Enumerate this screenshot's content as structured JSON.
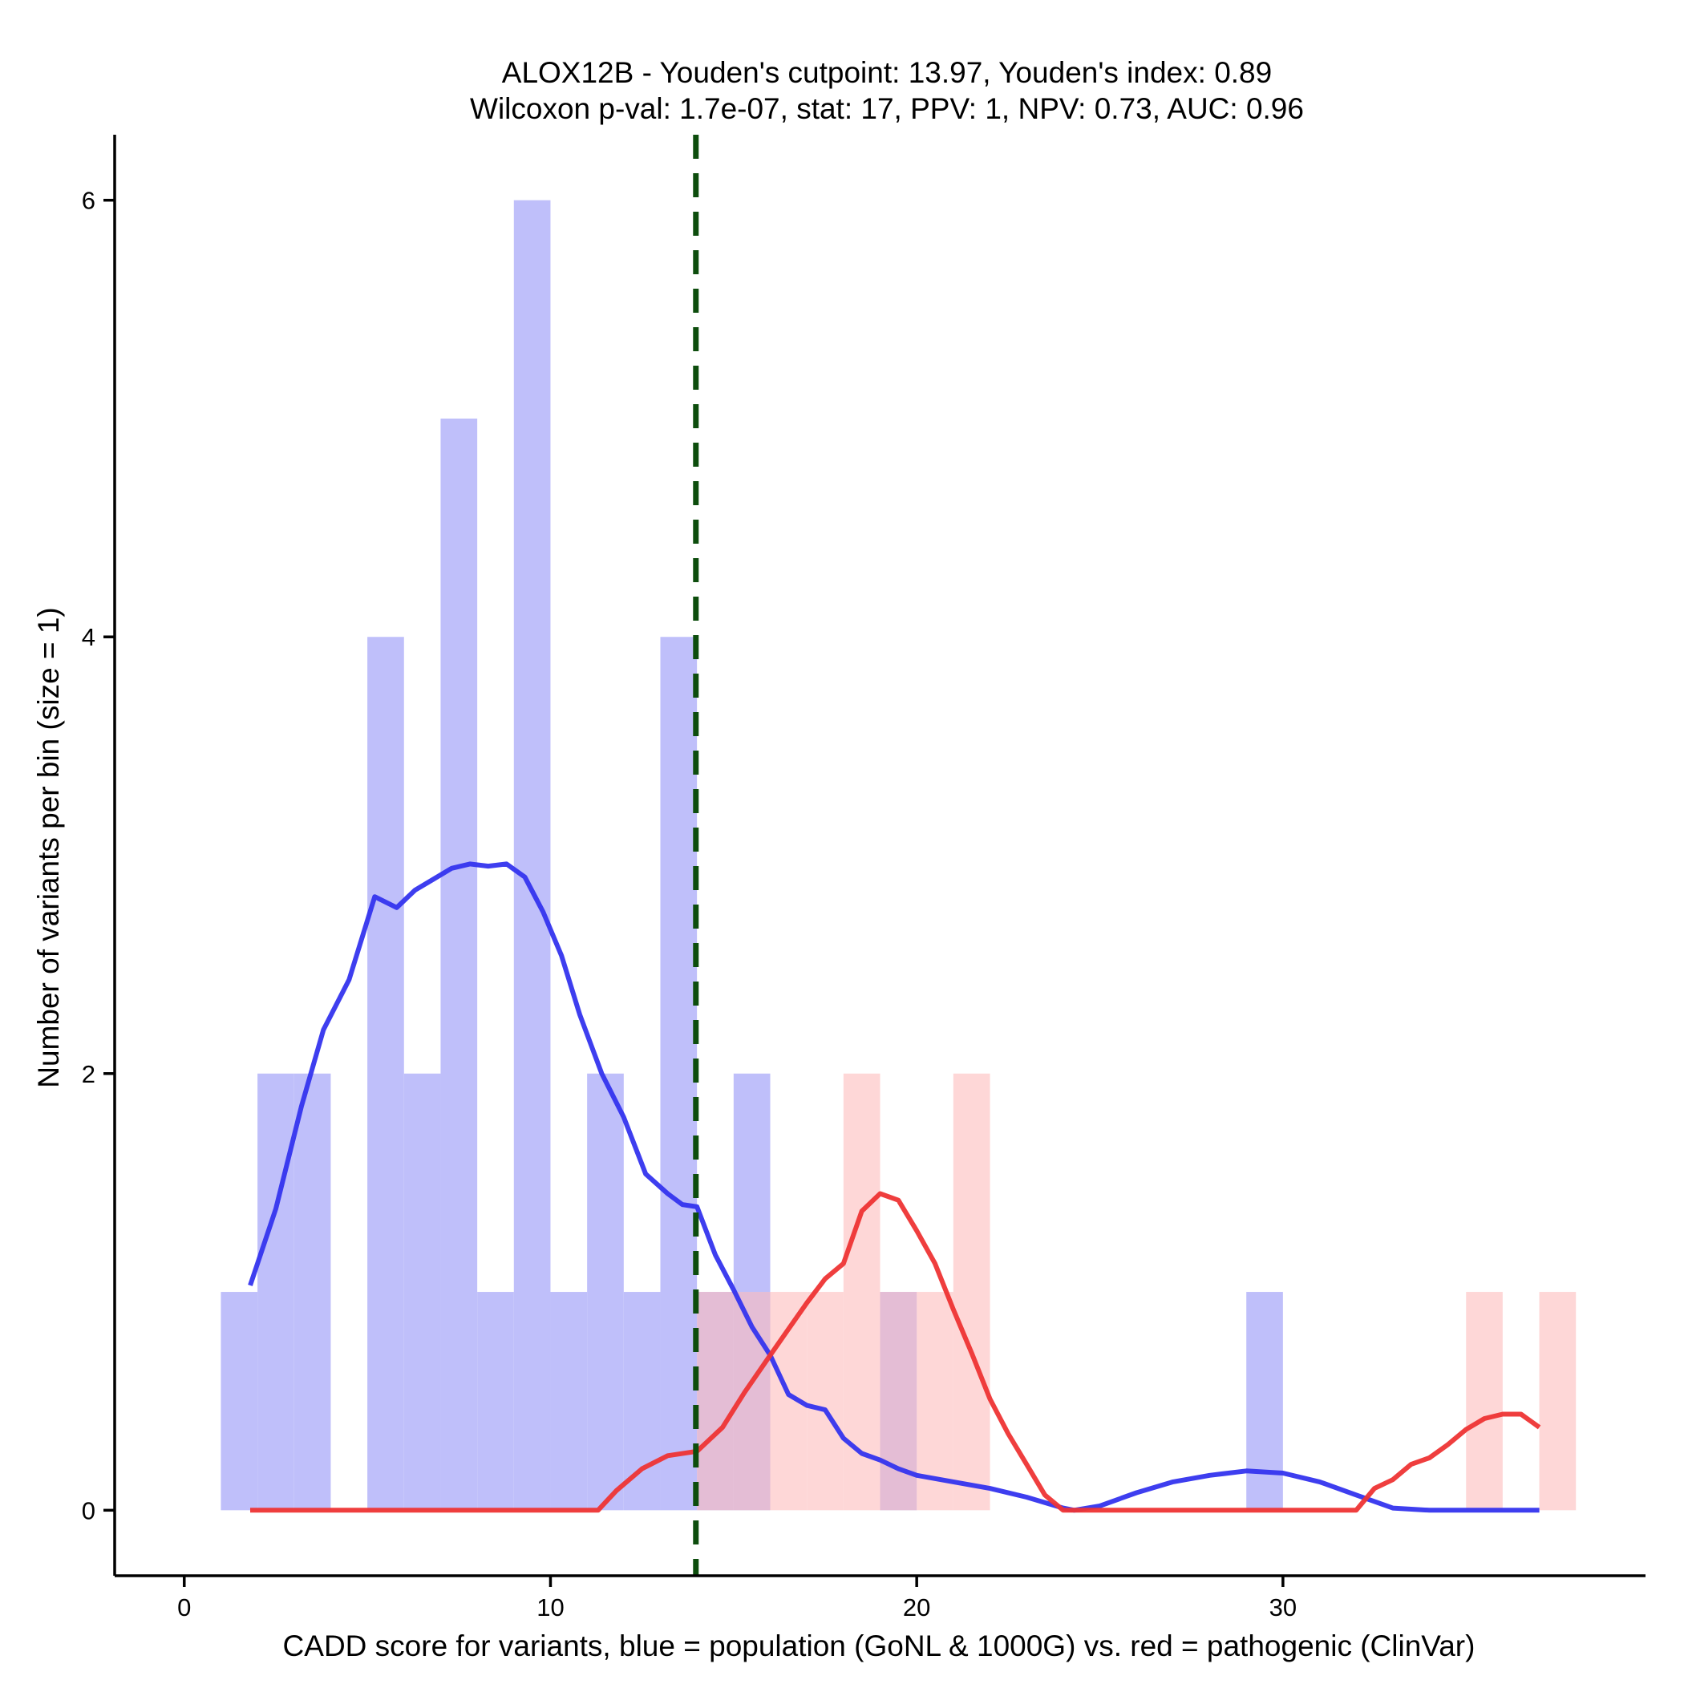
{
  "chart_data": {
    "type": "histogram",
    "title": "ALOX12B - Youden's cutpoint: 13.97, Youden's index: 0.89",
    "subtitle": "Wilcoxon p-val: 1.7e-07, stat: 17, PPV: 1, NPV: 0.73, AUC: 0.96",
    "xlabel": "CADD score for variants, blue = population (GoNL & 1000G) vs. red = pathogenic (ClinVar)",
    "ylabel": "Number of variants per bin (size = 1)",
    "xlim": [
      -1.9,
      39.9
    ],
    "ylim": [
      -0.3,
      6.3
    ],
    "x_ticks": [
      0,
      10,
      20,
      30
    ],
    "y_ticks": [
      0,
      2,
      4,
      6
    ],
    "bin_size": 1,
    "cutpoint": 13.97,
    "series": [
      {
        "name": "population (GoNL & 1000G)",
        "color": "#bcbcfa",
        "line_color": "#3434ee",
        "bins": [
          {
            "start": 1,
            "end": 2,
            "count": 1
          },
          {
            "start": 2,
            "end": 3,
            "count": 2
          },
          {
            "start": 3,
            "end": 4,
            "count": 2
          },
          {
            "start": 5,
            "end": 6,
            "count": 4
          },
          {
            "start": 6,
            "end": 7,
            "count": 2
          },
          {
            "start": 7,
            "end": 8,
            "count": 5
          },
          {
            "start": 8,
            "end": 9,
            "count": 1
          },
          {
            "start": 9,
            "end": 10,
            "count": 6
          },
          {
            "start": 10,
            "end": 11,
            "count": 1
          },
          {
            "start": 11,
            "end": 12,
            "count": 2
          },
          {
            "start": 12,
            "end": 13,
            "count": 1
          },
          {
            "start": 13,
            "end": 14,
            "count": 4
          },
          {
            "start": 14,
            "end": 15,
            "count": 1
          },
          {
            "start": 15,
            "end": 16,
            "count": 2
          },
          {
            "start": 19,
            "end": 20,
            "count": 1
          },
          {
            "start": 29,
            "end": 30,
            "count": 1
          }
        ],
        "density": {
          "x": [
            1.8,
            2.5,
            3.2,
            3.8,
            4.5,
            5.2,
            5.8,
            6.3,
            6.8,
            7.3,
            7.8,
            8.3,
            8.8,
            9.3,
            9.8,
            10.3,
            10.8,
            11.4,
            12.0,
            12.6,
            13.2,
            13.6,
            14.0,
            14.5,
            15.0,
            15.5,
            16.0,
            16.5,
            17.0,
            17.5,
            18.0,
            18.5,
            19.0,
            19.5,
            20.0,
            21.0,
            22.0,
            23.0,
            24.0,
            24.3,
            25.0,
            26.0,
            27.0,
            28.0,
            29.0,
            30.0,
            31.0,
            32.0,
            33.0,
            34.0,
            35.0,
            36.0,
            37.0
          ],
          "y": [
            1.03,
            1.38,
            1.85,
            2.2,
            2.43,
            2.81,
            2.76,
            2.84,
            2.89,
            2.94,
            2.96,
            2.95,
            2.96,
            2.9,
            2.74,
            2.54,
            2.27,
            2.0,
            1.8,
            1.54,
            1.45,
            1.4,
            1.39,
            1.17,
            1.01,
            0.84,
            0.71,
            0.53,
            0.48,
            0.46,
            0.33,
            0.26,
            0.23,
            0.19,
            0.16,
            0.13,
            0.1,
            0.06,
            0.01,
            0.0,
            0.02,
            0.08,
            0.13,
            0.16,
            0.18,
            0.17,
            0.13,
            0.07,
            0.01,
            0.0,
            0.0,
            0.0,
            0.0
          ]
        }
      },
      {
        "name": "pathogenic (ClinVar)",
        "color": "#fdbcbc",
        "line_color": "#ee3434",
        "bins": [
          {
            "start": 14,
            "end": 15,
            "count": 1
          },
          {
            "start": 15,
            "end": 16,
            "count": 1
          },
          {
            "start": 16,
            "end": 17,
            "count": 1
          },
          {
            "start": 17,
            "end": 18,
            "count": 1
          },
          {
            "start": 18,
            "end": 19,
            "count": 2
          },
          {
            "start": 19,
            "end": 20,
            "count": 1
          },
          {
            "start": 20,
            "end": 21,
            "count": 1
          },
          {
            "start": 21,
            "end": 22,
            "count": 2
          },
          {
            "start": 35,
            "end": 36,
            "count": 1
          },
          {
            "start": 37,
            "end": 38,
            "count": 1
          }
        ],
        "density": {
          "x": [
            1.8,
            11.3,
            11.8,
            12.5,
            13.2,
            14.0,
            14.7,
            15.3,
            16.0,
            16.5,
            17.0,
            17.5,
            18.0,
            18.5,
            19.0,
            19.5,
            20.0,
            20.5,
            21.0,
            21.5,
            22.0,
            22.5,
            23.0,
            23.5,
            24.0,
            24.5,
            25.0,
            26.0,
            28.0,
            30.0,
            31.0,
            32.0,
            32.5,
            33.0,
            33.5,
            34.0,
            34.5,
            35.0,
            35.5,
            36.0,
            36.5,
            37.0
          ],
          "y": [
            0.0,
            0.0,
            0.09,
            0.19,
            0.25,
            0.27,
            0.38,
            0.54,
            0.71,
            0.83,
            0.95,
            1.06,
            1.13,
            1.37,
            1.45,
            1.42,
            1.28,
            1.13,
            0.92,
            0.72,
            0.51,
            0.35,
            0.21,
            0.07,
            0.0,
            0.0,
            0.0,
            0.0,
            0.0,
            0.0,
            0.0,
            0.0,
            0.1,
            0.14,
            0.21,
            0.24,
            0.3,
            0.37,
            0.42,
            0.44,
            0.44,
            0.38
          ]
        }
      }
    ]
  }
}
